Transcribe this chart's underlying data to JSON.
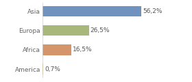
{
  "categories": [
    "Asia",
    "Europa",
    "Africa",
    "America"
  ],
  "values": [
    56.2,
    26.5,
    16.5,
    0.7
  ],
  "labels": [
    "56,2%",
    "26,5%",
    "16,5%",
    "0,7%"
  ],
  "bar_colors": [
    "#7092be",
    "#a8b87a",
    "#d4956a",
    "#d4c050"
  ],
  "background_color": "#ffffff",
  "xlim": [
    0,
    72
  ],
  "bar_height": 0.55,
  "label_fontsize": 6.5,
  "tick_fontsize": 6.5,
  "label_color": "#555555",
  "tick_color": "#666666"
}
